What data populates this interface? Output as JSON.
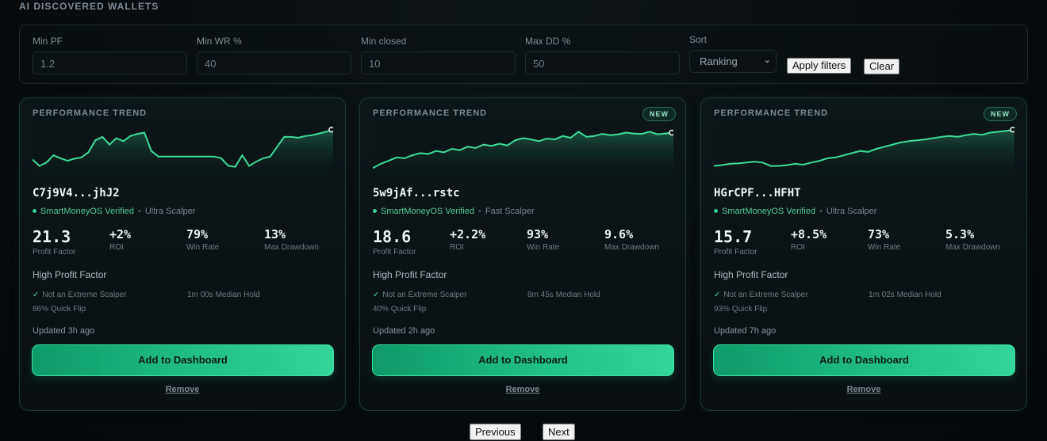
{
  "section_title": "AI DISCOVERED WALLETS",
  "filters": {
    "min_pf": {
      "label": "Min PF",
      "value": "1.2"
    },
    "min_wr": {
      "label": "Min WR %",
      "value": "40"
    },
    "min_closed": {
      "label": "Min closed",
      "value": "10"
    },
    "max_dd": {
      "label": "Max DD %",
      "value": "50"
    },
    "sort": {
      "label": "Sort",
      "value": "Ranking"
    },
    "apply_label": "Apply filters",
    "clear_label": "Clear"
  },
  "cards": [
    {
      "trend_label": "PERFORMANCE TREND",
      "new": "",
      "spark": [
        0.25,
        0.1,
        0.18,
        0.35,
        0.28,
        0.22,
        0.27,
        0.3,
        0.42,
        0.7,
        0.78,
        0.6,
        0.75,
        0.68,
        0.8,
        0.85,
        0.88,
        0.45,
        0.32,
        0.32,
        0.32,
        0.32,
        0.32,
        0.32,
        0.32,
        0.32,
        0.32,
        0.28,
        0.1,
        0.08,
        0.35,
        0.1,
        0.2,
        0.28,
        0.32,
        0.55,
        0.78,
        0.78,
        0.76,
        0.8,
        0.82,
        0.86,
        0.9,
        0.95
      ],
      "address": "C7j9V4...jhJ2",
      "verified": "SmartMoneyOS Verified",
      "style": "Ultra Scalper",
      "profit_factor": "21.3",
      "profit_factor_label": "Profit Factor",
      "roi": "+2%",
      "roi_label": "ROI",
      "win_rate": "79%",
      "win_rate_label": "Win Rate",
      "max_dd": "13%",
      "max_dd_label": "Max Drawdown",
      "highlight": "High Profit Factor",
      "tag1": "Not an Extreme Scalper",
      "tag2": "1m 00s Median Hold",
      "tag3": "86% Quick Flip",
      "updated": "Updated 3h ago",
      "add_label": "Add to Dashboard",
      "remove_label": "Remove"
    },
    {
      "trend_label": "PERFORMANCE TREND",
      "new": "NEW",
      "spark": [
        0.05,
        0.15,
        0.22,
        0.3,
        0.28,
        0.35,
        0.4,
        0.38,
        0.45,
        0.42,
        0.5,
        0.47,
        0.55,
        0.52,
        0.6,
        0.57,
        0.62,
        0.58,
        0.7,
        0.75,
        0.72,
        0.68,
        0.74,
        0.72,
        0.8,
        0.76,
        0.9,
        0.78,
        0.8,
        0.85,
        0.82,
        0.84,
        0.88,
        0.86,
        0.85,
        0.9,
        0.84,
        0.86,
        0.88
      ],
      "address": "5w9jAf...rstc",
      "verified": "SmartMoneyOS Verified",
      "style": "Fast Scalper",
      "profit_factor": "18.6",
      "profit_factor_label": "Profit Factor",
      "roi": "+2.2%",
      "roi_label": "ROI",
      "win_rate": "93%",
      "win_rate_label": "Win Rate",
      "max_dd": "9.6%",
      "max_dd_label": "Max Drawdown",
      "highlight": "High Profit Factor",
      "tag1": "Not an Extreme Scalper",
      "tag2": "8m 45s Median Hold",
      "tag3": "40% Quick Flip",
      "updated": "Updated 2h ago",
      "add_label": "Add to Dashboard",
      "remove_label": "Remove"
    },
    {
      "trend_label": "PERFORMANCE TREND",
      "new": "NEW",
      "spark": [
        0.1,
        0.12,
        0.15,
        0.16,
        0.18,
        0.2,
        0.18,
        0.1,
        0.1,
        0.12,
        0.15,
        0.13,
        0.18,
        0.22,
        0.28,
        0.3,
        0.35,
        0.4,
        0.45,
        0.43,
        0.5,
        0.55,
        0.6,
        0.65,
        0.68,
        0.7,
        0.72,
        0.75,
        0.78,
        0.8,
        0.78,
        0.82,
        0.85,
        0.83,
        0.88,
        0.9,
        0.92,
        0.95
      ],
      "address": "HGrCPF...HFHT",
      "verified": "SmartMoneyOS Verified",
      "style": "Ultra Scalper",
      "profit_factor": "15.7",
      "profit_factor_label": "Profit Factor",
      "roi": "+8.5%",
      "roi_label": "ROI",
      "win_rate": "73%",
      "win_rate_label": "Win Rate",
      "max_dd": "5.3%",
      "max_dd_label": "Max Drawdown",
      "highlight": "High Profit Factor",
      "tag1": "Not an Extreme Scalper",
      "tag2": "1m 02s Median Hold",
      "tag3": "93% Quick Flip",
      "updated": "Updated 7h ago",
      "add_label": "Add to Dashboard",
      "remove_label": "Remove"
    }
  ],
  "pagination": {
    "prev_label": "Previous",
    "next_label": "Next"
  },
  "colors": {
    "accent": "#34d69b",
    "line": "#3ddc97"
  }
}
